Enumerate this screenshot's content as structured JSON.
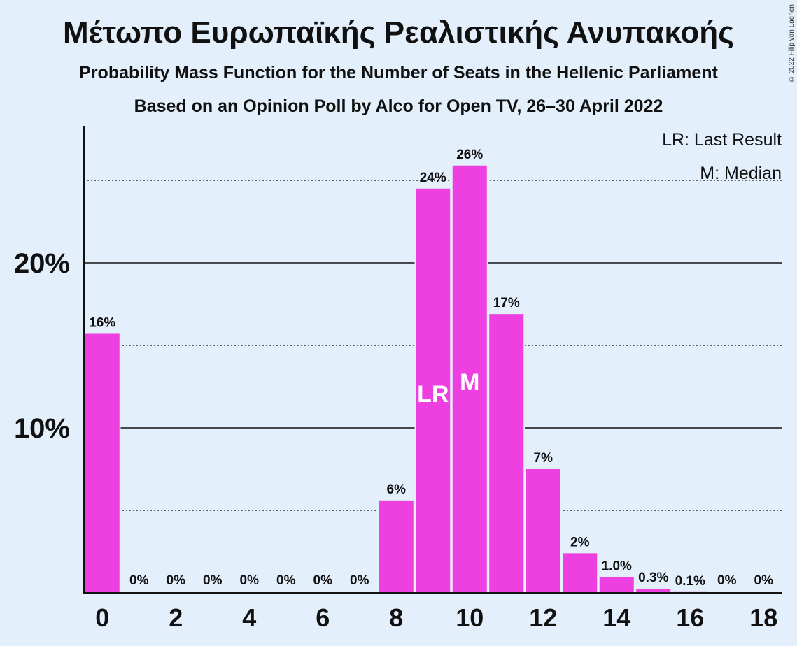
{
  "title": "Μέτωπο Ευρωπαϊκής Ρεαλιστικής Ανυπακοής",
  "subtitle1": "Probability Mass Function for the Number of Seats in the Hellenic Parliament",
  "subtitle2": "Based on an Opinion Poll by Alco for Open TV, 26–30 April 2022",
  "copyright": "© 2022 Filip van Laenen",
  "legend": {
    "last_result": "LR: Last Result",
    "median": "M: Median"
  },
  "colors": {
    "bar": "#ee3fe0",
    "background": "#e3f0fc"
  },
  "chart_data": {
    "type": "bar",
    "x": [
      0,
      1,
      2,
      3,
      4,
      5,
      6,
      7,
      8,
      9,
      10,
      11,
      12,
      13,
      14,
      15,
      16,
      17,
      18
    ],
    "values": [
      15.7,
      0,
      0,
      0,
      0,
      0,
      0,
      0,
      5.6,
      24.5,
      25.9,
      16.9,
      7.5,
      2.4,
      0.95,
      0.25,
      0.05,
      0,
      0
    ],
    "data_labels": [
      "16%",
      "0%",
      "0%",
      "0%",
      "0%",
      "0%",
      "0%",
      "0%",
      "6%",
      "24%",
      "26%",
      "17%",
      "7%",
      "2%",
      "1.0%",
      "0.3%",
      "0.1%",
      "0%",
      "0%"
    ],
    "x_tick_labels": [
      "0",
      "2",
      "4",
      "6",
      "8",
      "10",
      "12",
      "14",
      "16",
      "18"
    ],
    "x_tick_values": [
      0,
      2,
      4,
      6,
      8,
      10,
      12,
      14,
      16,
      18
    ],
    "y_tick_labels": [
      "10%",
      "20%"
    ],
    "y_tick_values": [
      10,
      20
    ],
    "y_minor_gridlines": [
      5,
      15,
      25
    ],
    "ylim": [
      0,
      28
    ],
    "last_result_seat": 9,
    "last_result_marker": "LR",
    "median_seat": 10,
    "median_marker": "M",
    "legend_position": "top-right"
  }
}
